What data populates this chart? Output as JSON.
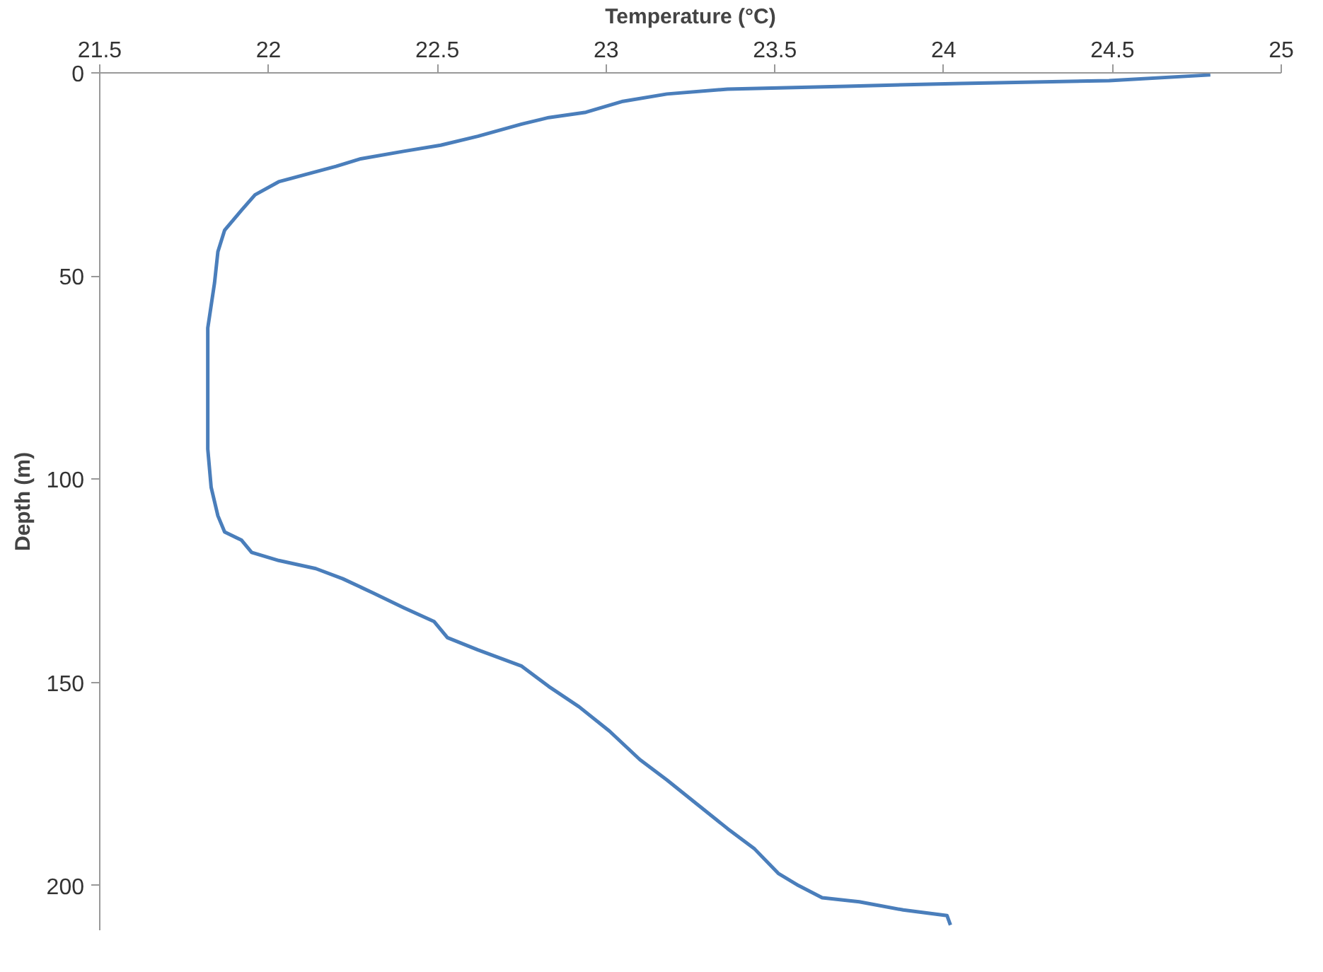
{
  "chart_data": {
    "type": "line",
    "xlabel": "Temperature (°C)",
    "ylabel": "Depth (m)",
    "xlim": [
      21.5,
      25
    ],
    "xticks": [
      21.5,
      22,
      22.5,
      23,
      23.5,
      24,
      24.5,
      25
    ],
    "ylim": [
      211,
      0
    ],
    "yticks": [
      0,
      50,
      100,
      150,
      200
    ],
    "marker": "none",
    "line_style": "solid",
    "series": [
      {
        "color": "#4a7ebb",
        "x": [
          24.79,
          24.49,
          24.05,
          23.71,
          23.36,
          23.18,
          23.05,
          22.94,
          22.83,
          22.75,
          22.62,
          22.51,
          22.4,
          22.27,
          22.2,
          22.11,
          22.03,
          21.96,
          21.92,
          21.87,
          21.85,
          21.84,
          21.82,
          21.82,
          21.82,
          21.82,
          21.83,
          21.85,
          21.87,
          21.92,
          21.95,
          22.03,
          22.14,
          22.22,
          22.31,
          22.4,
          22.49,
          22.53,
          22.62,
          22.75,
          22.83,
          22.92,
          23.01,
          23.1,
          23.18,
          23.27,
          23.36,
          23.44,
          23.51,
          23.57,
          23.64,
          23.75,
          23.88,
          24.01,
          24.02
        ],
        "values": [
          0.5,
          1.9,
          2.6,
          3.3,
          4,
          5.2,
          7,
          9.7,
          11,
          12.6,
          15.6,
          17.8,
          19.3,
          21.2,
          23,
          25,
          26.8,
          30,
          33.8,
          38.7,
          44,
          51.7,
          62.8,
          74,
          81,
          92.6,
          102,
          109,
          113,
          115,
          118,
          120,
          122,
          124.5,
          128,
          131.6,
          135,
          139,
          142,
          146,
          151,
          156,
          162,
          169,
          174,
          180,
          186,
          191,
          197,
          200,
          203,
          204,
          206,
          207.4,
          209.7
        ]
      }
    ]
  }
}
